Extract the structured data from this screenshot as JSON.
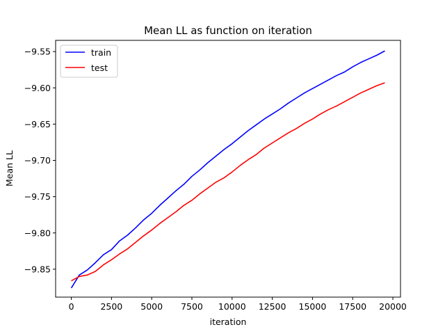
{
  "chart_data": {
    "type": "line",
    "title": "Mean LL as function on iteration",
    "xlabel": "iteration",
    "ylabel": "Mean LL",
    "xlim": [
      -975,
      20475
    ],
    "ylim": [
      -9.8885,
      -9.5345
    ],
    "xticks": [
      0,
      2500,
      5000,
      7500,
      10000,
      12500,
      15000,
      17500,
      20000
    ],
    "yticks": [
      -9.85,
      -9.8,
      -9.75,
      -9.7,
      -9.65,
      -9.6,
      -9.55
    ],
    "xtick_labels": [
      "0",
      "2500",
      "5000",
      "7500",
      "10000",
      "12500",
      "15000",
      "17500",
      "20000"
    ],
    "ytick_labels": [
      "−9.85",
      "−9.80",
      "−9.75",
      "−9.70",
      "−9.65",
      "−9.60",
      "−9.55"
    ],
    "grid": false,
    "legend_position": "upper-left",
    "x": [
      0,
      500,
      1000,
      1500,
      2000,
      2500,
      3000,
      3500,
      4000,
      4500,
      5000,
      5500,
      6000,
      6500,
      7000,
      7500,
      8000,
      8500,
      9000,
      9500,
      10000,
      10500,
      11000,
      11500,
      12000,
      12500,
      13000,
      13500,
      14000,
      14500,
      15000,
      15500,
      16000,
      16500,
      17000,
      17500,
      18000,
      18500,
      19000,
      19500
    ],
    "series": [
      {
        "name": "train",
        "color": "#0000ff",
        "values": [
          -9.876,
          -9.858,
          -9.851,
          -9.841,
          -9.83,
          -9.823,
          -9.811,
          -9.803,
          -9.793,
          -9.782,
          -9.773,
          -9.762,
          -9.752,
          -9.742,
          -9.733,
          -9.722,
          -9.713,
          -9.703,
          -9.694,
          -9.685,
          -9.677,
          -9.668,
          -9.659,
          -9.651,
          -9.643,
          -9.636,
          -9.629,
          -9.621,
          -9.614,
          -9.607,
          -9.601,
          -9.595,
          -9.589,
          -9.583,
          -9.578,
          -9.571,
          -9.565,
          -9.56,
          -9.555,
          -9.549
        ]
      },
      {
        "name": "test",
        "color": "#ff0000",
        "values": [
          -9.866,
          -9.86,
          -9.858,
          -9.853,
          -9.844,
          -9.837,
          -9.829,
          -9.822,
          -9.813,
          -9.804,
          -9.796,
          -9.787,
          -9.779,
          -9.771,
          -9.762,
          -9.755,
          -9.746,
          -9.738,
          -9.73,
          -9.724,
          -9.716,
          -9.707,
          -9.699,
          -9.692,
          -9.683,
          -9.676,
          -9.669,
          -9.662,
          -9.656,
          -9.649,
          -9.643,
          -9.636,
          -9.63,
          -9.625,
          -9.619,
          -9.613,
          -9.607,
          -9.602,
          -9.597,
          -9.593
        ]
      }
    ]
  }
}
